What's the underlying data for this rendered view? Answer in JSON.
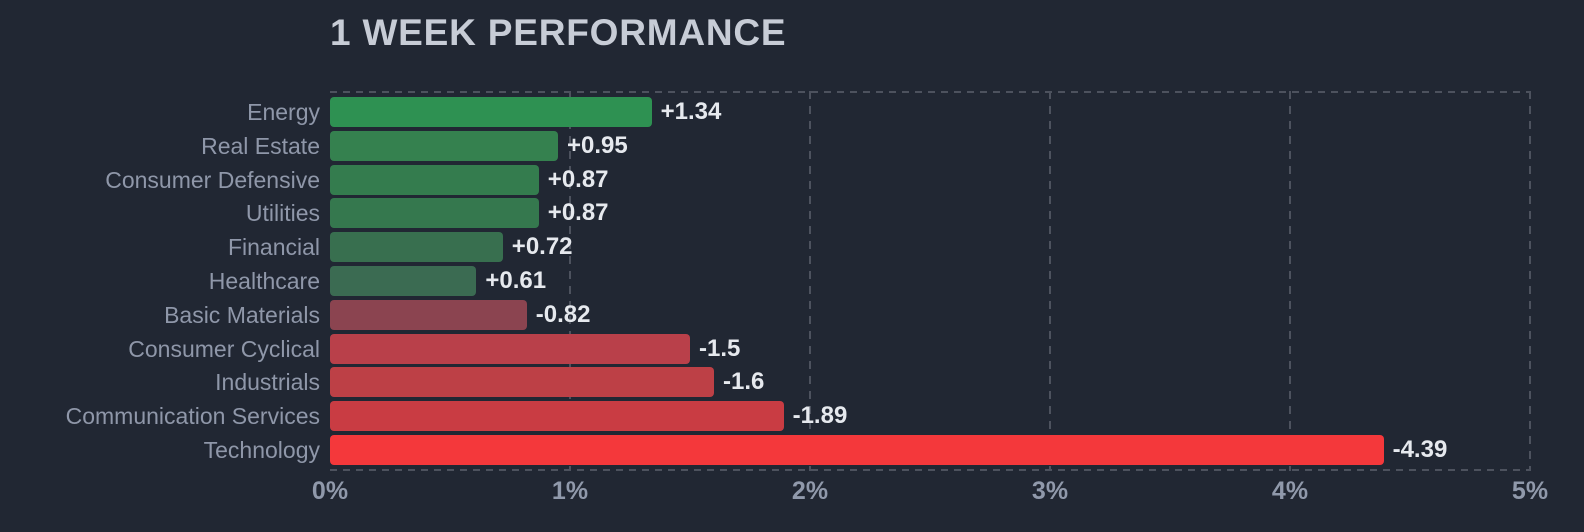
{
  "chart_data": {
    "type": "bar",
    "orientation": "horizontal",
    "title": "1 WEEK PERFORMANCE",
    "xlabel": "",
    "ylabel": "",
    "grid": "dashed-vertical-at-each-percent",
    "legend": "none",
    "x_axis": {
      "min": 0,
      "max": 5,
      "unit": "%",
      "ticks": [
        "0%",
        "1%",
        "2%",
        "3%",
        "4%",
        "5%"
      ],
      "note": "bars plotted by absolute value; sign shown by color"
    },
    "bars": [
      {
        "category": "Energy",
        "value": 1.34,
        "label": "+1.34",
        "color": "#2e9152"
      },
      {
        "category": "Real Estate",
        "value": 0.95,
        "label": "+0.95",
        "color": "#35814f"
      },
      {
        "category": "Consumer Defensive",
        "value": 0.87,
        "label": "+0.87",
        "color": "#347c4e"
      },
      {
        "category": "Utilities",
        "value": 0.87,
        "label": "+0.87",
        "color": "#35784e"
      },
      {
        "category": "Financial",
        "value": 0.72,
        "label": "+0.72",
        "color": "#386f4f"
      },
      {
        "category": "Healthcare",
        "value": 0.61,
        "label": "+0.61",
        "color": "#3b6b52"
      },
      {
        "category": "Basic Materials",
        "value": -0.82,
        "label": "-0.82",
        "color": "#8b4450"
      },
      {
        "category": "Consumer Cyclical",
        "value": -1.5,
        "label": "-1.5",
        "color": "#b9404a"
      },
      {
        "category": "Industrials",
        "value": -1.6,
        "label": "-1.6",
        "color": "#bd4046"
      },
      {
        "category": "Communication Services",
        "value": -1.89,
        "label": "-1.89",
        "color": "#c93c43"
      },
      {
        "category": "Technology",
        "value": -4.39,
        "label": "-4.39",
        "color": "#f4383b"
      }
    ],
    "colors": {
      "background": "#212733",
      "grid": "#4d525e",
      "title": "#c7ccd6",
      "category_label": "#8f97a9",
      "value_label": "#e6e9ee",
      "axis_label": "#9099ab",
      "positive": "#2e9152",
      "negative": "#f4383b"
    }
  }
}
